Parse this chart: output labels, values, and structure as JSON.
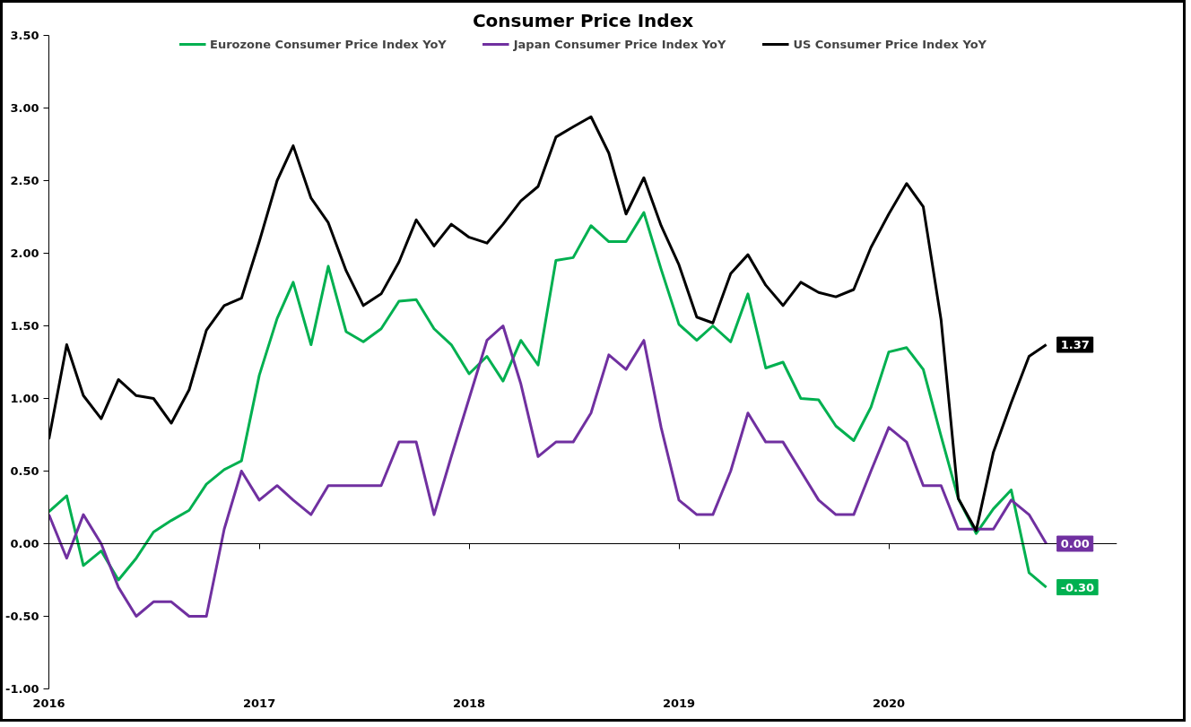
{
  "chart_data": {
    "type": "line",
    "title": "Consumer Price Index",
    "x": [
      "2016-01",
      "2016-02",
      "2016-03",
      "2016-04",
      "2016-05",
      "2016-06",
      "2016-07",
      "2016-08",
      "2016-09",
      "2016-10",
      "2016-11",
      "2016-12",
      "2017-01",
      "2017-02",
      "2017-03",
      "2017-04",
      "2017-05",
      "2017-06",
      "2017-07",
      "2017-08",
      "2017-09",
      "2017-10",
      "2017-11",
      "2017-12",
      "2018-01",
      "2018-02",
      "2018-03",
      "2018-04",
      "2018-05",
      "2018-06",
      "2018-07",
      "2018-08",
      "2018-09",
      "2018-10",
      "2018-11",
      "2018-12",
      "2019-01",
      "2019-02",
      "2019-03",
      "2019-04",
      "2019-05",
      "2019-06",
      "2019-07",
      "2019-08",
      "2019-09",
      "2019-10",
      "2019-11",
      "2019-12",
      "2020-01",
      "2020-02",
      "2020-03",
      "2020-04",
      "2020-05",
      "2020-06",
      "2020-07",
      "2020-08",
      "2020-09",
      "2020-10"
    ],
    "series": [
      {
        "name": "Eurozone Consumer Price Index YoY",
        "color": "#00b050",
        "values": [
          0.22,
          0.33,
          -0.15,
          -0.05,
          -0.25,
          -0.1,
          0.08,
          0.16,
          0.23,
          0.41,
          0.51,
          0.57,
          1.16,
          1.55,
          1.8,
          1.37,
          1.91,
          1.46,
          1.39,
          1.48,
          1.67,
          1.68,
          1.48,
          1.37,
          1.17,
          1.29,
          1.12,
          1.4,
          1.23,
          1.95,
          1.97,
          2.19,
          2.08,
          2.08,
          2.28,
          1.89,
          1.51,
          1.4,
          1.5,
          1.39,
          1.72,
          1.21,
          1.25,
          1.0,
          0.99,
          0.81,
          0.71,
          0.94,
          1.32,
          1.35,
          1.2,
          0.74,
          0.31,
          0.07,
          0.24,
          0.37,
          -0.2,
          -0.3
        ],
        "value_labels": [
          null,
          null,
          null,
          null,
          null,
          null,
          null,
          null,
          null,
          null,
          null,
          null,
          null,
          null,
          null,
          null,
          null,
          null,
          null,
          null,
          null,
          null,
          null,
          null,
          null,
          null,
          null,
          null,
          null,
          null,
          null,
          null,
          null,
          null,
          null,
          null,
          null,
          null,
          null,
          null,
          null,
          null,
          null,
          null,
          null,
          null,
          null,
          null,
          null,
          null,
          null,
          null,
          null,
          null,
          null,
          null,
          null,
          "-0.30"
        ]
      },
      {
        "name": "Japan Consumer Price Index YoY",
        "color": "#7030a0",
        "values": [
          0.2,
          -0.1,
          0.2,
          0.0,
          -0.3,
          -0.5,
          -0.4,
          -0.4,
          -0.5,
          -0.5,
          0.1,
          0.5,
          0.3,
          0.4,
          0.3,
          0.2,
          0.4,
          0.4,
          0.4,
          0.4,
          0.7,
          0.7,
          0.2,
          0.6,
          1.0,
          1.4,
          1.5,
          1.1,
          0.6,
          0.7,
          0.7,
          0.9,
          1.3,
          1.2,
          1.4,
          0.8,
          0.3,
          0.2,
          0.2,
          0.5,
          0.9,
          0.7,
          0.7,
          0.5,
          0.3,
          0.2,
          0.2,
          0.5,
          0.8,
          0.7,
          0.4,
          0.4,
          0.1,
          0.1,
          0.1,
          0.3,
          0.2,
          0.0
        ],
        "value_labels": [
          null,
          null,
          null,
          null,
          null,
          null,
          null,
          null,
          null,
          null,
          null,
          null,
          null,
          null,
          null,
          null,
          null,
          null,
          null,
          null,
          null,
          null,
          null,
          null,
          null,
          null,
          null,
          null,
          null,
          null,
          null,
          null,
          null,
          null,
          null,
          null,
          null,
          null,
          null,
          null,
          null,
          null,
          null,
          null,
          null,
          null,
          null,
          null,
          null,
          null,
          null,
          null,
          null,
          null,
          null,
          null,
          null,
          "0.00"
        ]
      },
      {
        "name": "US Consumer Price Index YoY",
        "color": "#000000",
        "values": [
          0.72,
          1.37,
          1.02,
          0.86,
          1.13,
          1.02,
          1.0,
          0.83,
          1.06,
          1.47,
          1.64,
          1.69,
          2.08,
          2.5,
          2.74,
          2.38,
          2.21,
          1.88,
          1.64,
          1.72,
          1.94,
          2.23,
          2.05,
          2.2,
          2.11,
          2.07,
          2.2,
          2.36,
          2.46,
          2.8,
          2.87,
          2.94,
          2.69,
          2.27,
          2.52,
          2.19,
          1.92,
          1.56,
          1.52,
          1.86,
          1.99,
          1.78,
          1.64,
          1.8,
          1.73,
          1.7,
          1.75,
          2.04,
          2.27,
          2.48,
          2.32,
          1.54,
          0.31,
          0.09,
          0.63,
          0.97,
          1.29,
          1.37
        ],
        "value_labels": [
          null,
          null,
          null,
          null,
          null,
          null,
          null,
          null,
          null,
          null,
          null,
          null,
          null,
          null,
          null,
          null,
          null,
          null,
          null,
          null,
          null,
          null,
          null,
          null,
          null,
          null,
          null,
          null,
          null,
          null,
          null,
          null,
          null,
          null,
          null,
          null,
          null,
          null,
          null,
          null,
          null,
          null,
          null,
          null,
          null,
          null,
          null,
          null,
          null,
          null,
          null,
          null,
          null,
          null,
          null,
          null,
          null,
          "1.37"
        ]
      }
    ],
    "xlim": [
      "2016-01",
      "2021-02"
    ],
    "xticks": [
      "2016",
      "2017",
      "2018",
      "2019",
      "2020"
    ],
    "ref_lines": [
      {
        "axis": "y",
        "value": 0,
        "color": "#000000"
      }
    ],
    "ylim": [
      -1.0,
      3.5
    ],
    "yticks": [
      {
        "value": -1.0,
        "label": "-1.00"
      },
      {
        "value": -0.5,
        "label": "-0.50"
      },
      {
        "value": 0,
        "label": "0.00"
      },
      {
        "value": 0.5,
        "label": "0.50"
      },
      {
        "value": 1.0,
        "label": "1.00"
      },
      {
        "value": 1.5,
        "label": "1.50"
      },
      {
        "value": 2.0,
        "label": "2.00"
      },
      {
        "value": 2.5,
        "label": "2.50"
      },
      {
        "value": 3.0,
        "label": "3.00"
      },
      {
        "value": 3.5,
        "label": "3.50"
      }
    ],
    "grid": false,
    "legend": "top",
    "marker": "none",
    "line_style": "solid"
  }
}
